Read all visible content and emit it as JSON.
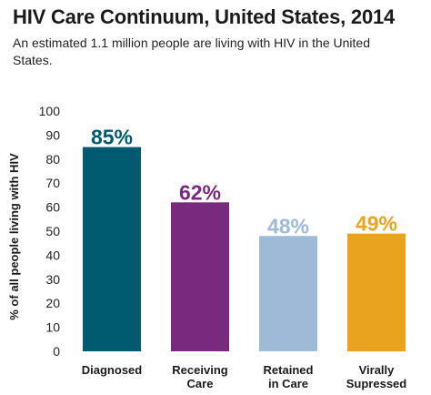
{
  "chart_data": {
    "type": "bar",
    "title": "HIV Care Continuum, United States, 2014",
    "subtitle": "An estimated 1.1 million people are living with HIV in the United States.",
    "ylabel": "% of all people living with HIV",
    "xlabel": "",
    "ylim": [
      0,
      100
    ],
    "yticks": [
      0,
      10,
      20,
      30,
      40,
      50,
      60,
      70,
      80,
      90,
      100
    ],
    "categories": [
      [
        "Diagnosed"
      ],
      [
        "Receiving",
        "Care"
      ],
      [
        "Retained",
        "in Care"
      ],
      [
        "Virally",
        "Supressed"
      ]
    ],
    "values": [
      85,
      62,
      48,
      49
    ],
    "data_labels": [
      "85%",
      "62%",
      "48%",
      "49%"
    ],
    "colors": [
      "#005a70",
      "#7a2a7e",
      "#9fbad6",
      "#eaa31e"
    ],
    "grid": false
  }
}
